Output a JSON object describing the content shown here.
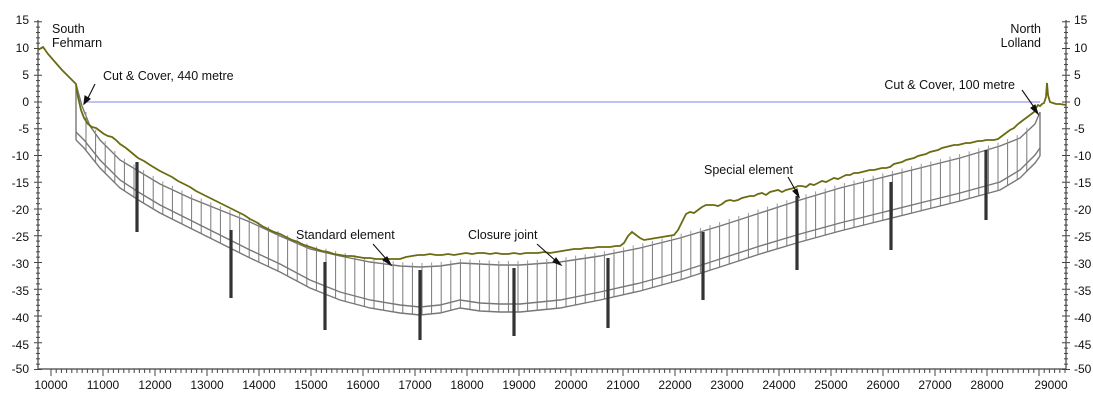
{
  "diagram": {
    "endpoints": {
      "south": [
        "South",
        "Fehmarn"
      ],
      "north": [
        "North",
        "Lolland"
      ]
    },
    "annotations": {
      "cut_cover_south": "Cut & Cover, 440 metre",
      "cut_cover_north": "Cut & Cover, 100 metre",
      "standard_element": "Standard element",
      "closure_joint": "Closure joint",
      "special_element": "Special element"
    },
    "y_ticks": [
      "15",
      "10",
      "5",
      "0",
      "-5",
      "-10",
      "-15",
      "-20",
      "-25",
      "-30",
      "-35",
      "-40",
      "-45",
      "-50"
    ],
    "x_ticks": [
      "10000",
      "11000",
      "12000",
      "13000",
      "14000",
      "15000",
      "16000",
      "17000",
      "18000",
      "19000",
      "20000",
      "21000",
      "22000",
      "23000",
      "24000",
      "25000",
      "26000",
      "27000",
      "28000",
      "29000"
    ],
    "colors": {
      "seabed": "#6b6b12",
      "water_line": "#9c9cf0",
      "tunnel": "#777777",
      "special_element": "#333333",
      "axis": "#444444"
    }
  }
}
